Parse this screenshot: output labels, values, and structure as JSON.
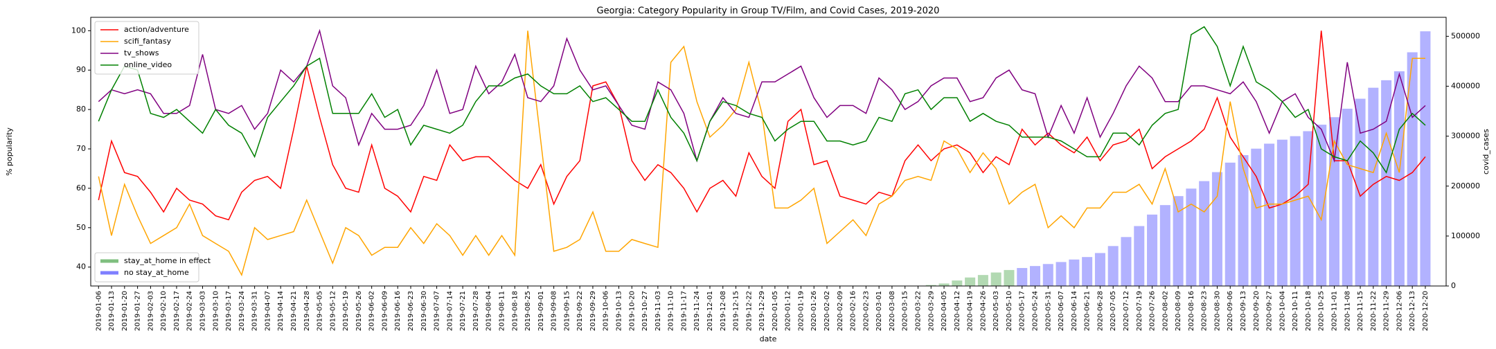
{
  "chart_data": {
    "type": "line",
    "title": "Georgia: Category Popularity in Group TV/Film, and Covid Cases, 2019-2020",
    "xlabel": "date",
    "ylabel": "% popularity",
    "y2label": "covid_cases",
    "categories": [
      "2019-01-06",
      "2019-01-13",
      "2019-01-20",
      "2019-01-27",
      "2019-02-03",
      "2019-02-10",
      "2019-02-17",
      "2019-02-24",
      "2019-03-03",
      "2019-03-10",
      "2019-03-17",
      "2019-03-24",
      "2019-03-31",
      "2019-04-07",
      "2019-04-14",
      "2019-04-21",
      "2019-04-28",
      "2019-05-05",
      "2019-05-12",
      "2019-05-19",
      "2019-05-26",
      "2019-06-02",
      "2019-06-09",
      "2019-06-16",
      "2019-06-23",
      "2019-06-30",
      "2019-07-07",
      "2019-07-14",
      "2019-07-21",
      "2019-07-28",
      "2019-08-04",
      "2019-08-11",
      "2019-08-18",
      "2019-08-25",
      "2019-09-01",
      "2019-09-08",
      "2019-09-15",
      "2019-09-22",
      "2019-09-29",
      "2019-10-06",
      "2019-10-13",
      "2019-10-20",
      "2019-10-27",
      "2019-11-03",
      "2019-11-10",
      "2019-11-17",
      "2019-11-24",
      "2019-12-01",
      "2019-12-08",
      "2019-12-15",
      "2019-12-22",
      "2019-12-29",
      "2020-01-05",
      "2020-01-12",
      "2020-01-19",
      "2020-01-26",
      "2020-02-02",
      "2020-02-09",
      "2020-02-16",
      "2020-02-23",
      "2020-03-01",
      "2020-03-08",
      "2020-03-15",
      "2020-03-22",
      "2020-03-29",
      "2020-04-05",
      "2020-04-12",
      "2020-04-19",
      "2020-04-26",
      "2020-05-03",
      "2020-05-10",
      "2020-05-17",
      "2020-05-24",
      "2020-05-31",
      "2020-06-07",
      "2020-06-14",
      "2020-06-21",
      "2020-06-28",
      "2020-07-05",
      "2020-07-12",
      "2020-07-19",
      "2020-07-26",
      "2020-08-02",
      "2020-08-09",
      "2020-08-16",
      "2020-08-23",
      "2020-08-30",
      "2020-09-06",
      "2020-09-13",
      "2020-09-20",
      "2020-09-27",
      "2020-10-04",
      "2020-10-11",
      "2020-10-18",
      "2020-10-25",
      "2020-11-01",
      "2020-11-08",
      "2020-11-15",
      "2020-11-22",
      "2020-11-29",
      "2020-12-06",
      "2020-12-13",
      "2020-12-20"
    ],
    "series": [
      {
        "name": "action/adventure",
        "color": "#ff0000",
        "values": [
          57,
          72,
          64,
          63,
          59,
          54,
          60,
          57,
          56,
          53,
          52,
          59,
          62,
          63,
          60,
          75,
          91,
          78,
          66,
          60,
          59,
          71,
          60,
          58,
          54,
          63,
          62,
          71,
          67,
          68,
          68,
          65,
          62,
          60,
          66,
          56,
          63,
          67,
          86,
          87,
          81,
          67,
          62,
          66,
          64,
          60,
          54,
          60,
          62,
          58,
          69,
          63,
          60,
          77,
          80,
          66,
          67,
          58,
          57,
          56,
          59,
          58,
          67,
          71,
          67,
          70,
          71,
          69,
          64,
          68,
          66,
          75,
          71,
          74,
          71,
          69,
          73,
          67,
          71,
          72,
          75,
          65,
          68,
          70,
          72,
          75,
          83,
          73,
          68,
          63,
          55,
          56,
          58,
          61,
          100,
          67,
          67,
          58,
          61,
          63,
          62,
          64,
          68
        ]
      },
      {
        "name": "scifi_fantasy",
        "color": "#ffa500",
        "values": [
          63,
          48,
          61,
          53,
          46,
          48,
          50,
          56,
          48,
          46,
          44,
          38,
          50,
          47,
          48,
          49,
          57,
          49,
          41,
          50,
          48,
          43,
          45,
          45,
          50,
          46,
          51,
          48,
          43,
          48,
          43,
          48,
          43,
          100,
          72,
          44,
          45,
          47,
          54,
          44,
          44,
          47,
          46,
          45,
          92,
          96,
          82,
          73,
          76,
          80,
          92,
          79,
          55,
          55,
          57,
          60,
          46,
          49,
          52,
          48,
          56,
          58,
          62,
          63,
          62,
          72,
          70,
          64,
          69,
          65,
          56,
          59,
          61,
          50,
          53,
          50,
          55,
          55,
          59,
          59,
          61,
          56,
          65,
          54,
          56,
          54,
          58,
          82,
          65,
          55,
          56,
          56,
          57,
          58,
          52,
          72,
          66,
          65,
          64,
          74,
          64,
          93,
          93
        ]
      },
      {
        "name": "tv_shows",
        "color": "#800080",
        "values": [
          82,
          85,
          84,
          85,
          84,
          79,
          79,
          81,
          94,
          80,
          79,
          81,
          75,
          79,
          90,
          87,
          91,
          100,
          86,
          83,
          71,
          79,
          75,
          75,
          76,
          81,
          90,
          79,
          80,
          91,
          84,
          87,
          94,
          83,
          82,
          86,
          98,
          90,
          85,
          86,
          81,
          76,
          75,
          87,
          85,
          79,
          67,
          77,
          83,
          79,
          78,
          87,
          87,
          89,
          91,
          83,
          78,
          81,
          81,
          79,
          88,
          85,
          80,
          82,
          86,
          88,
          88,
          82,
          83,
          88,
          90,
          85,
          84,
          73,
          81,
          74,
          83,
          73,
          79,
          86,
          91,
          88,
          82,
          82,
          86,
          86,
          85,
          84,
          87,
          82,
          74,
          82,
          84,
          78,
          75,
          67,
          92,
          74,
          75,
          77,
          89,
          78,
          81
        ]
      },
      {
        "name": "online_video",
        "color": "#008000",
        "values": [
          77,
          85,
          91,
          90,
          79,
          78,
          80,
          77,
          74,
          80,
          76,
          74,
          68,
          78,
          82,
          86,
          91,
          93,
          79,
          79,
          79,
          84,
          78,
          80,
          71,
          76,
          75,
          74,
          76,
          82,
          86,
          86,
          88,
          89,
          86,
          84,
          84,
          86,
          82,
          83,
          80,
          77,
          77,
          85,
          78,
          74,
          67,
          77,
          82,
          81,
          79,
          78,
          72,
          75,
          77,
          77,
          72,
          72,
          71,
          72,
          78,
          77,
          84,
          85,
          80,
          83,
          83,
          77,
          79,
          77,
          76,
          73,
          73,
          73,
          72,
          70,
          68,
          68,
          74,
          74,
          71,
          76,
          79,
          80,
          99,
          101,
          96,
          86,
          96,
          87,
          85,
          82,
          78,
          80,
          70,
          68,
          67,
          72,
          69,
          64,
          75,
          79,
          76
        ]
      },
      {
        "name": "stay_at_home in effect",
        "color": "#008000",
        "axis": "y2",
        "type": "bar",
        "values": [
          null,
          null,
          null,
          null,
          null,
          null,
          null,
          null,
          null,
          null,
          null,
          null,
          null,
          null,
          null,
          null,
          null,
          null,
          null,
          null,
          null,
          null,
          null,
          null,
          null,
          null,
          null,
          null,
          null,
          null,
          null,
          null,
          null,
          null,
          null,
          null,
          null,
          null,
          null,
          null,
          null,
          null,
          null,
          null,
          null,
          null,
          null,
          null,
          null,
          null,
          null,
          null,
          null,
          null,
          null,
          null,
          null,
          null,
          null,
          null,
          null,
          null,
          null,
          null,
          2000,
          5000,
          11000,
          17000,
          22000,
          27000,
          32000,
          null,
          null,
          null,
          null,
          null,
          null,
          null,
          null,
          null,
          null,
          null,
          null,
          null,
          null,
          null,
          null,
          null,
          null,
          null,
          null,
          null,
          null,
          null,
          null,
          null,
          null,
          null,
          null,
          null,
          null,
          null,
          null
        ]
      },
      {
        "name": "no stay_at_home",
        "color": "#0000ff",
        "axis": "y2",
        "type": "bar",
        "values": [
          null,
          null,
          null,
          null,
          null,
          null,
          null,
          null,
          null,
          null,
          null,
          null,
          null,
          null,
          null,
          null,
          null,
          null,
          null,
          null,
          null,
          null,
          null,
          null,
          null,
          null,
          null,
          null,
          null,
          null,
          null,
          null,
          null,
          null,
          null,
          null,
          null,
          null,
          null,
          null,
          null,
          null,
          null,
          null,
          null,
          null,
          null,
          null,
          null,
          null,
          null,
          null,
          null,
          null,
          null,
          null,
          null,
          null,
          null,
          null,
          null,
          null,
          null,
          null,
          null,
          null,
          null,
          null,
          null,
          null,
          null,
          36000,
          40000,
          44000,
          48000,
          53000,
          58000,
          66000,
          80000,
          98000,
          120000,
          143000,
          162000,
          180000,
          195000,
          210000,
          228000,
          247000,
          262000,
          275000,
          285000,
          293000,
          300000,
          310000,
          323000,
          338000,
          355000,
          375000,
          397000,
          412000,
          430000,
          468000,
          510000
        ]
      }
    ],
    "ylim": [
      35.2,
      103.4
    ],
    "yticks": [
      40,
      50,
      60,
      70,
      80,
      90,
      100
    ],
    "y2lim": [
      0,
      538000
    ],
    "y2ticks": [
      0,
      100000,
      200000,
      300000,
      400000,
      500000
    ],
    "legend": "upper left",
    "legend2": "lower left"
  }
}
